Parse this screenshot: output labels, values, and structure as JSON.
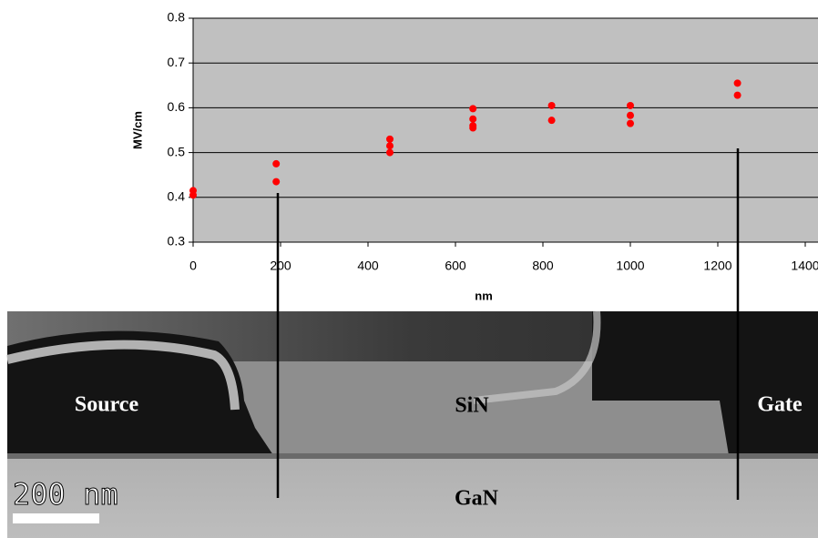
{
  "chart_data": {
    "type": "scatter",
    "x": [
      0,
      0,
      190,
      190,
      450,
      450,
      450,
      640,
      640,
      640,
      640,
      820,
      820,
      1000,
      1000,
      1000,
      1245,
      1245
    ],
    "values": [
      0.415,
      0.405,
      0.475,
      0.435,
      0.53,
      0.515,
      0.5,
      0.598,
      0.575,
      0.56,
      0.555,
      0.605,
      0.572,
      0.605,
      0.583,
      0.565,
      0.655,
      0.628
    ],
    "color": "#ff0000",
    "xlabel": "nm",
    "ylabel": "MV/cm",
    "xlim": [
      0,
      1400
    ],
    "xticks": [
      0,
      200,
      400,
      600,
      800,
      1000,
      1200,
      1400
    ],
    "ylim": [
      0.3,
      0.8
    ],
    "yticks": [
      0.3,
      0.4,
      0.5,
      0.6,
      0.7,
      0.8
    ],
    "grid": true,
    "annotations": [
      "Source",
      "SiN",
      "Gate",
      "GaN",
      "200 nm"
    ]
  }
}
